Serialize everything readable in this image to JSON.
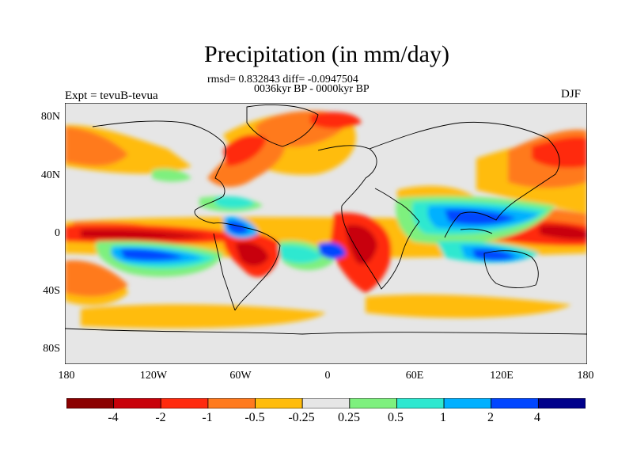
{
  "header": {
    "title": "Precipitation (in mm/day)",
    "stats": "rmsd= 0.832843 diff= -0.0947504",
    "period": "0036kyr BP - 0000kyr BP",
    "experiment": "Expt = tevuB-tevua",
    "season": "DJF"
  },
  "axes": {
    "lat_labels": [
      "80N",
      "40N",
      "0",
      "40S",
      "80S"
    ],
    "lon_labels": [
      "180",
      "120W",
      "60W",
      "0",
      "60E",
      "120E",
      "180"
    ]
  },
  "colorbar": {
    "colors": [
      "#8b0000",
      "#c8000a",
      "#ff2a0e",
      "#ff7a1e",
      "#ffbc0c",
      "#e6e6e6",
      "#7ef07e",
      "#2ee8d0",
      "#00b0ff",
      "#0046ff",
      "#00008b"
    ],
    "labels": [
      "-4",
      "-2",
      "-1",
      "-0.5",
      "-0.25",
      "0.25",
      "0.5",
      "1",
      "2",
      "4"
    ]
  }
}
